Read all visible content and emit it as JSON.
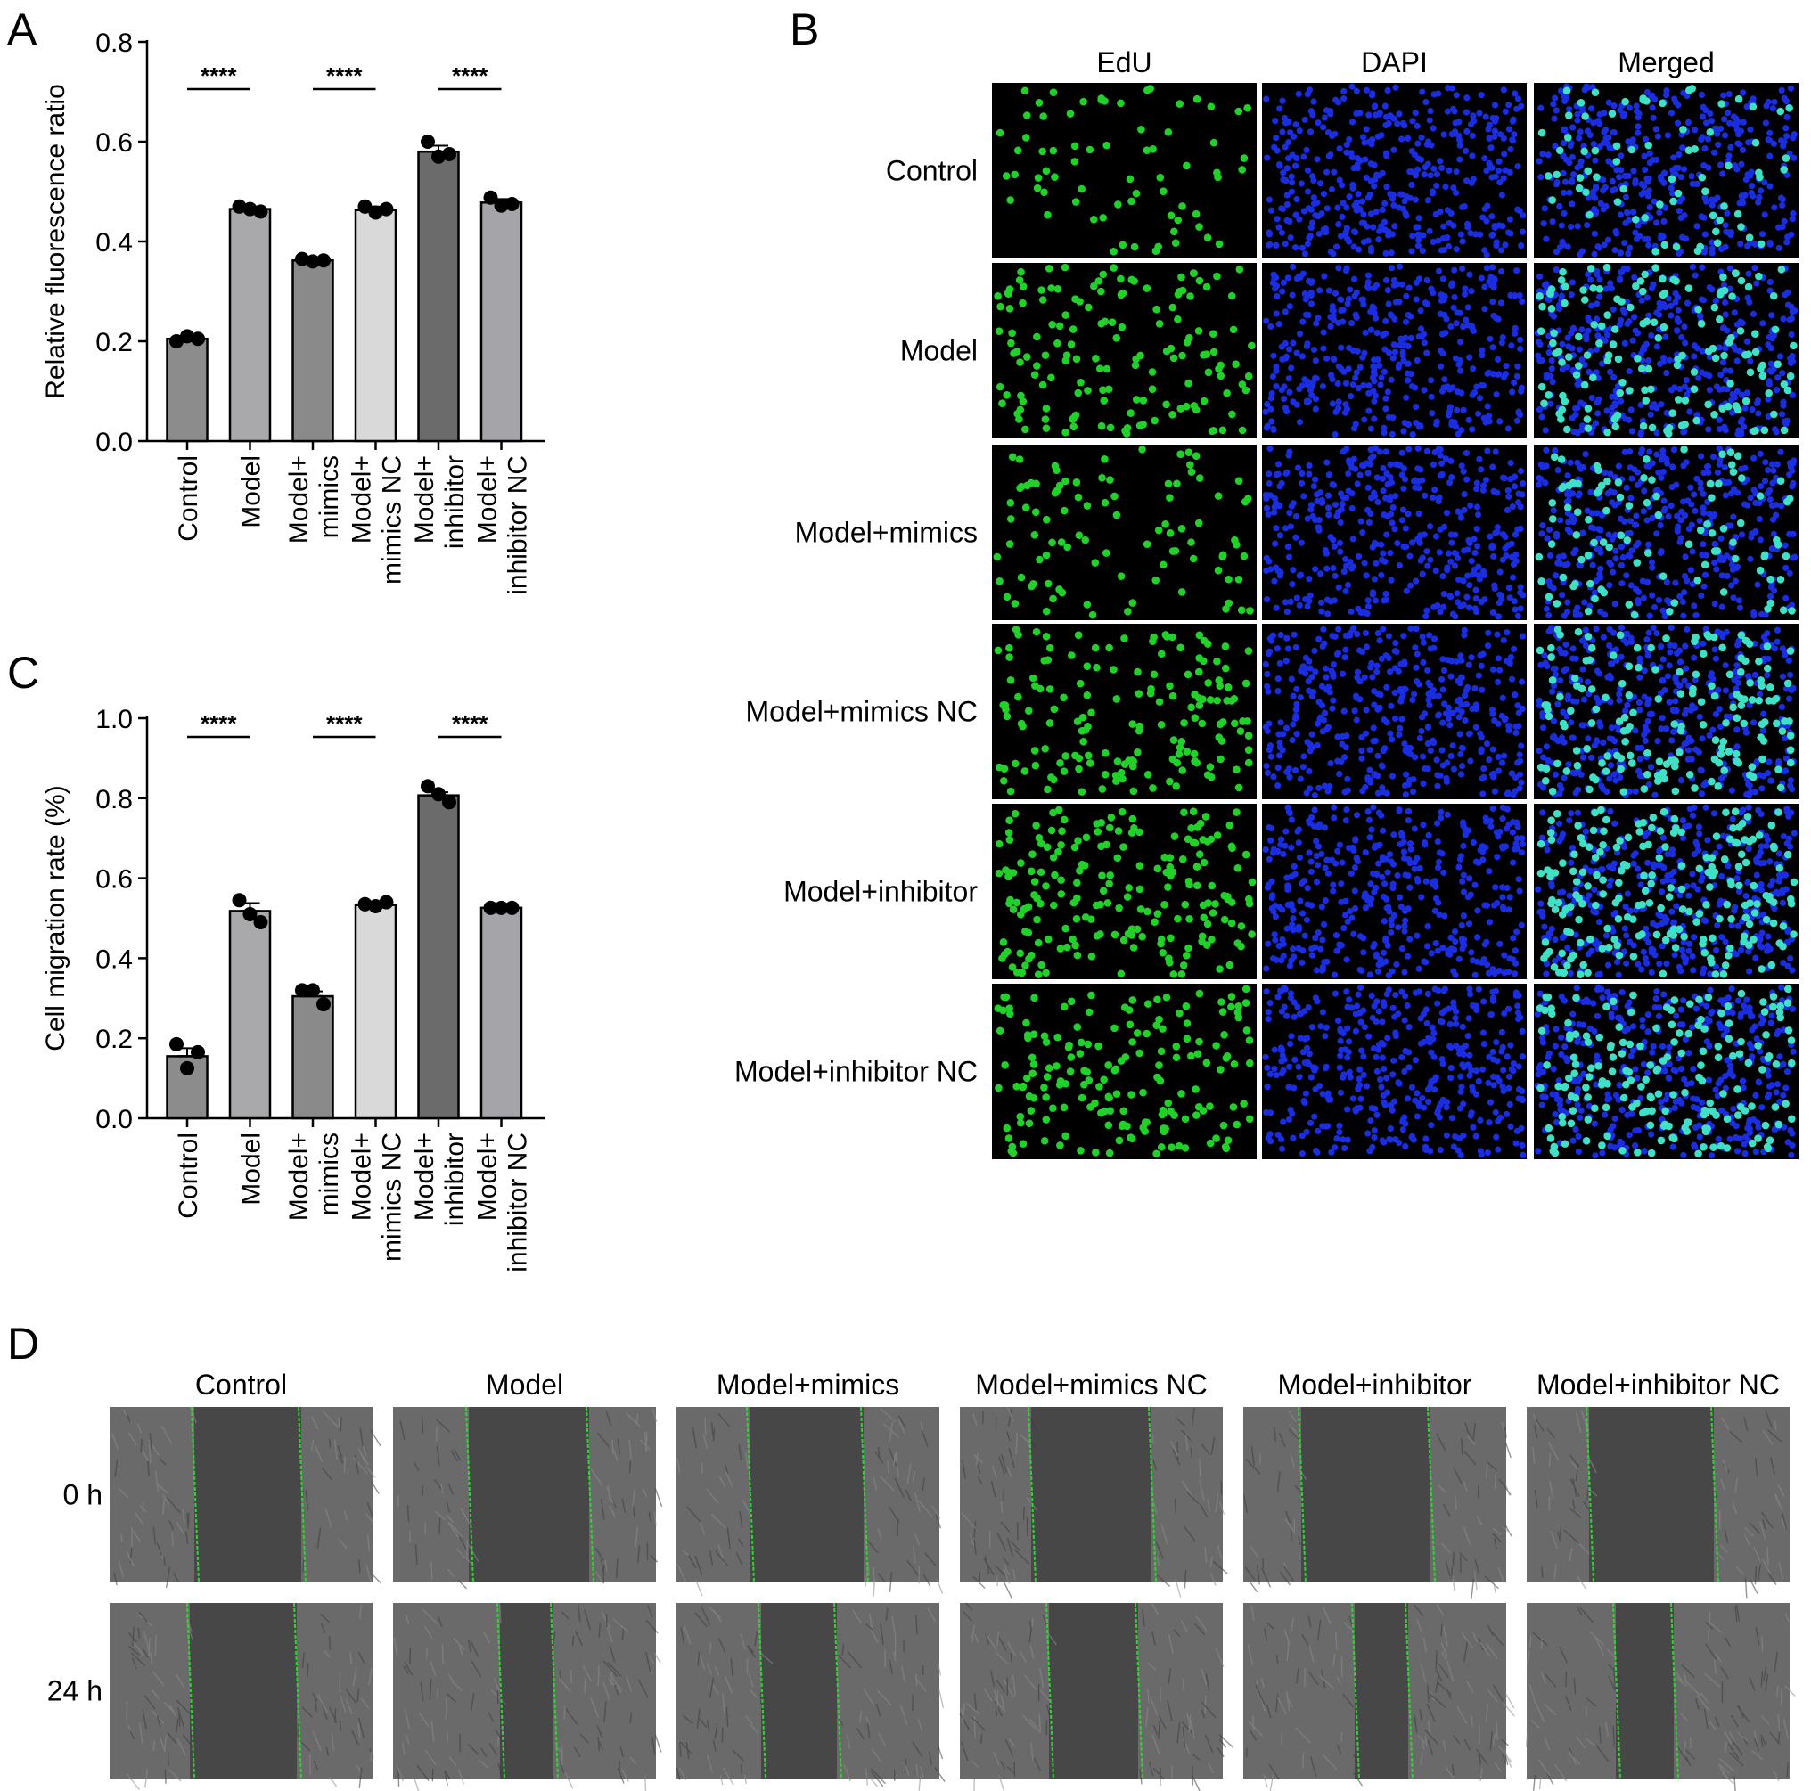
{
  "panels": {
    "a": "A",
    "b": "B",
    "c": "C",
    "d": "D"
  },
  "colors": {
    "background": "#ffffff",
    "bar_fills": [
      "#8c8c8c",
      "#a9a9ab",
      "#8a8a8a",
      "#d9d9d9",
      "#6b6b6b",
      "#a4a4a9"
    ],
    "edu": "#22d02a",
    "dapi": "#1a2de0",
    "merged": "#3fe0c4",
    "scratch_line": "#2fd62f",
    "phase_contrast": "#5a5a5a"
  },
  "chart_data": [
    {
      "id": "A",
      "type": "bar",
      "categories": [
        [
          "Control"
        ],
        [
          "Model"
        ],
        [
          "Model+",
          "mimics"
        ],
        [
          "Model+",
          "mimics NC"
        ],
        [
          "Model+",
          "inhibitor"
        ],
        [
          "Model+",
          "inhibitor NC"
        ]
      ],
      "values": [
        0.205,
        0.465,
        0.362,
        0.463,
        0.58,
        0.478
      ],
      "errors": [
        0.005,
        0.005,
        0.005,
        0.007,
        0.012,
        0.007
      ],
      "points": [
        [
          0.2,
          0.21,
          0.205
        ],
        [
          0.47,
          0.465,
          0.46
        ],
        [
          0.365,
          0.36,
          0.362
        ],
        [
          0.47,
          0.458,
          0.465
        ],
        [
          0.6,
          0.57,
          0.575
        ],
        [
          0.488,
          0.472,
          0.475
        ]
      ],
      "ylabel": "Relative fluorescence ratio",
      "xlabel": "",
      "ylim": [
        0,
        0.8
      ],
      "yticks": [
        "0.0",
        "0.2",
        "0.4",
        "0.6",
        "0.8"
      ],
      "significance": [
        {
          "pair": [
            0,
            1
          ],
          "label": "****"
        },
        {
          "pair": [
            2,
            3
          ],
          "label": "****"
        },
        {
          "pair": [
            4,
            5
          ],
          "label": "****"
        }
      ]
    },
    {
      "id": "C",
      "type": "bar",
      "categories": [
        [
          "Control"
        ],
        [
          "Model"
        ],
        [
          "Model+",
          "mimics"
        ],
        [
          "Model+",
          "mimics NC"
        ],
        [
          "Model+",
          "inhibitor"
        ],
        [
          "Model+",
          "inhibitor NC"
        ]
      ],
      "values": [
        0.155,
        0.518,
        0.305,
        0.533,
        0.807,
        0.526
      ],
      "errors": [
        0.02,
        0.02,
        0.012,
        0.005,
        0.008,
        0.003
      ],
      "points": [
        [
          0.185,
          0.125,
          0.165
        ],
        [
          0.545,
          0.51,
          0.49
        ],
        [
          0.32,
          0.32,
          0.285
        ],
        [
          0.535,
          0.53,
          0.54
        ],
        [
          0.83,
          0.81,
          0.79
        ],
        [
          0.526,
          0.526,
          0.526
        ]
      ],
      "ylabel": "Cell migration rate (%)",
      "xlabel": "",
      "ylim": [
        0,
        1.0
      ],
      "yticks": [
        "0.0",
        "0.2",
        "0.4",
        "0.6",
        "0.8",
        "1.0"
      ],
      "significance": [
        {
          "pair": [
            0,
            1
          ],
          "label": "****"
        },
        {
          "pair": [
            2,
            3
          ],
          "label": "****"
        },
        {
          "pair": [
            4,
            5
          ],
          "label": "****"
        }
      ]
    }
  ],
  "edu_panel": {
    "columns": [
      "EdU",
      "DAPI",
      "Merged"
    ],
    "rows": [
      "Control",
      "Model",
      "Model+mimics",
      "Model+mimics NC",
      "Model+inhibitor",
      "Model+inhibitor NC"
    ]
  },
  "wound_panel": {
    "columns": [
      "Control",
      "Model",
      "Model+mimics",
      "Model+mimics NC",
      "Model+inhibitor",
      "Model+inhibitor NC"
    ],
    "rows": [
      "0 h",
      "24 h"
    ]
  }
}
